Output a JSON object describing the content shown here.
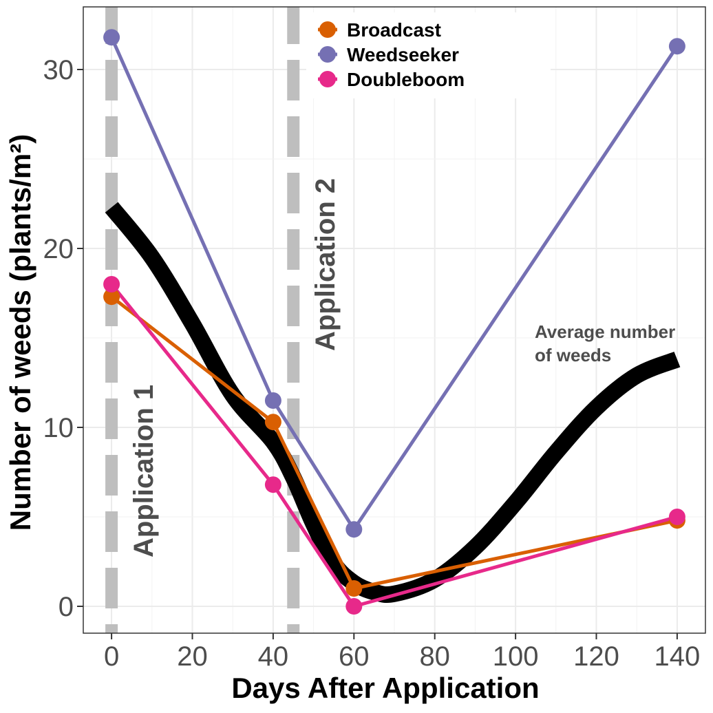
{
  "chart_data": {
    "type": "line",
    "xlabel": "Days After Application",
    "ylabel": "Number of weeds (plants/m²)",
    "xlim": [
      -7,
      147
    ],
    "ylim": [
      -1.5,
      33.5
    ],
    "x_ticks": [
      0,
      20,
      40,
      60,
      80,
      100,
      120,
      140
    ],
    "y_ticks": [
      0,
      10,
      20,
      30
    ],
    "x": [
      0,
      40,
      60,
      140
    ],
    "series": [
      {
        "name": "Broadcast",
        "color": "#d95f02",
        "values": [
          17.3,
          10.3,
          1.0,
          4.8
        ]
      },
      {
        "name": "Weedseeker",
        "color": "#7570b3",
        "values": [
          31.8,
          11.5,
          4.3,
          31.3
        ]
      },
      {
        "name": "Doubleboom",
        "color": "#e7298a",
        "values": [
          18.0,
          6.8,
          0.0,
          5.0
        ]
      }
    ],
    "smooth_curve": {
      "name": "Average number of weeds",
      "color": "#000000",
      "points": [
        [
          0,
          22.3
        ],
        [
          10,
          19.5
        ],
        [
          20,
          15.8
        ],
        [
          30,
          11.8
        ],
        [
          40,
          9.2
        ],
        [
          45,
          7.2
        ],
        [
          50,
          4.6
        ],
        [
          55,
          2.4
        ],
        [
          60,
          1.3
        ],
        [
          65,
          0.8
        ],
        [
          70,
          0.7
        ],
        [
          80,
          1.5
        ],
        [
          90,
          3.3
        ],
        [
          100,
          5.8
        ],
        [
          110,
          8.6
        ],
        [
          120,
          11.1
        ],
        [
          130,
          12.9
        ],
        [
          140,
          13.8
        ]
      ]
    },
    "application_lines": [
      {
        "x": 0,
        "label": "Application 1"
      },
      {
        "x": 45,
        "label": "Application 2"
      }
    ],
    "annotation": {
      "line1": "Average number",
      "line2": "of weeds",
      "x": 104,
      "y": 15
    },
    "legend": "top-center",
    "grid": true
  }
}
